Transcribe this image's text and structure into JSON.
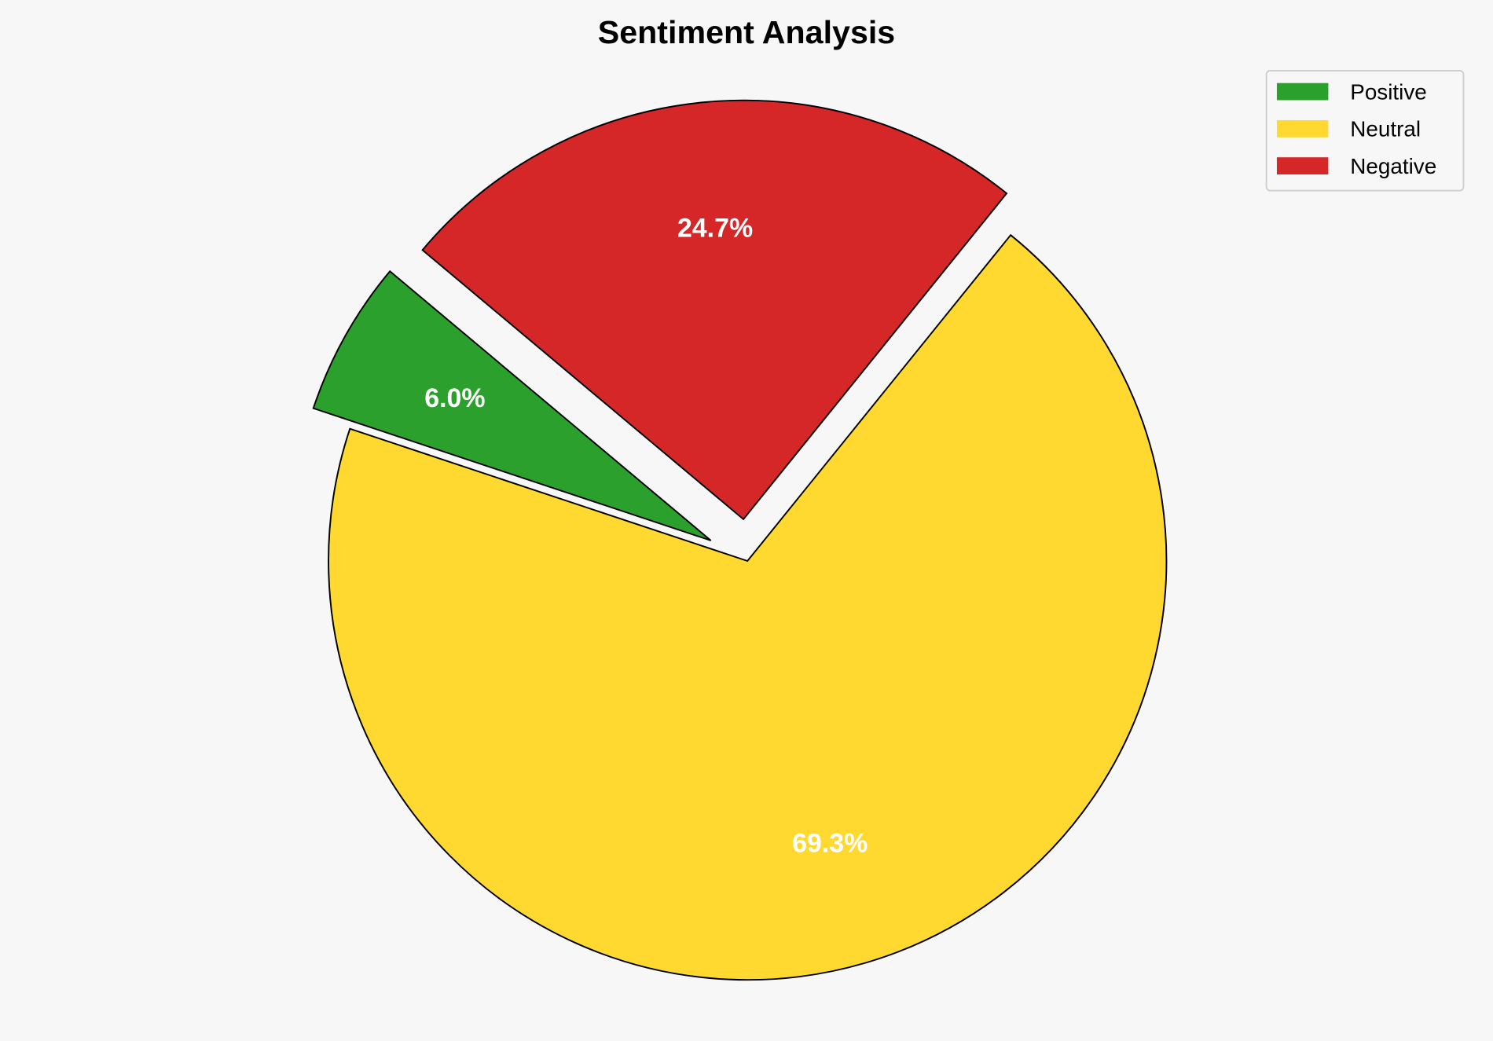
{
  "chart_data": {
    "type": "pie",
    "title": "Sentiment Analysis",
    "categories": [
      "Positive",
      "Neutral",
      "Negative"
    ],
    "values": [
      6.0,
      69.3,
      24.7
    ],
    "labels": [
      "6.0%",
      "69.3%",
      "24.7%"
    ],
    "colors": [
      "#2ca02c",
      "#ffd92f",
      "#d62728"
    ],
    "exploded": [
      true,
      false,
      true
    ],
    "start_angle_deg": 140,
    "direction": "counterclockwise",
    "legend_position": "top-right",
    "edge_color": "#000000",
    "background": "#f7f7f7"
  }
}
